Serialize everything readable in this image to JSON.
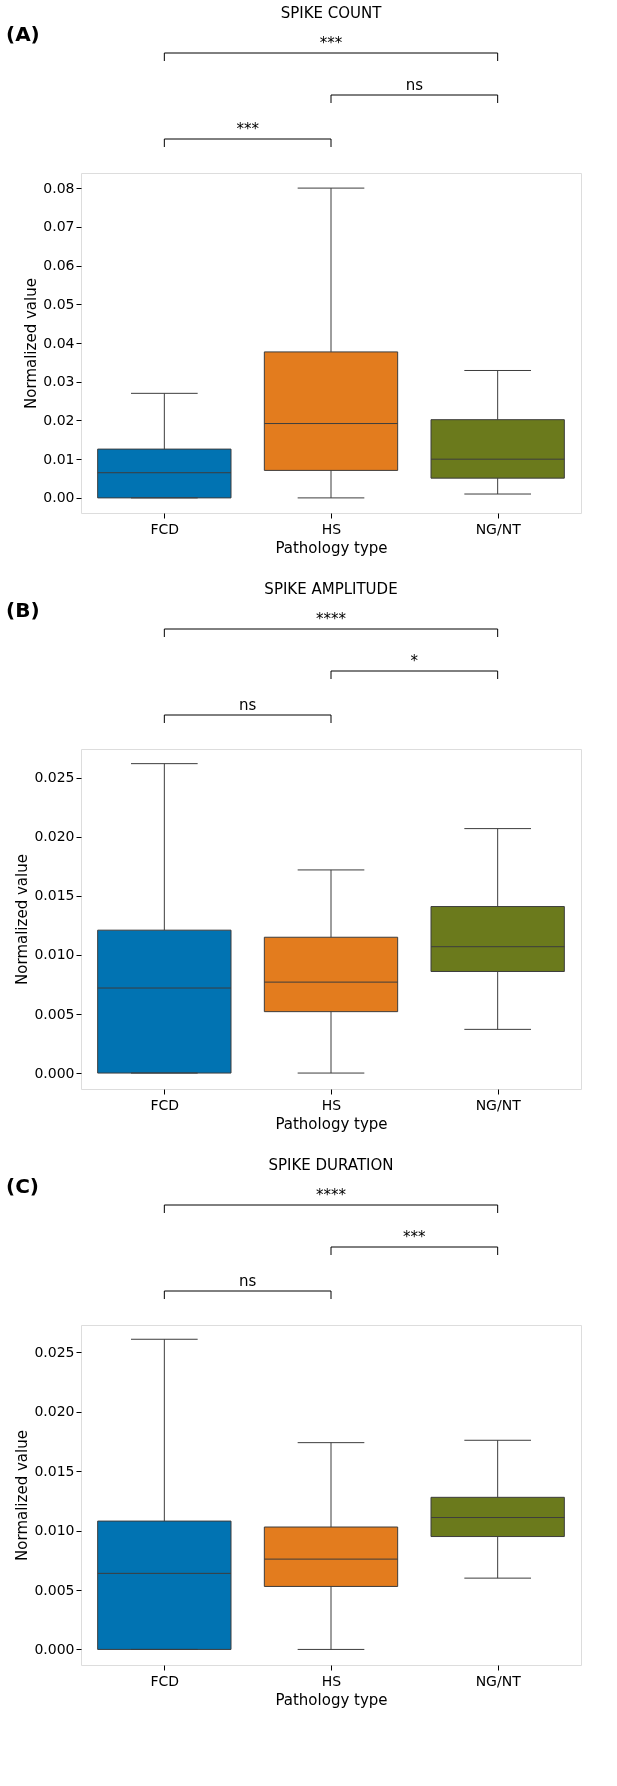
{
  "chart_data": [
    {
      "type": "box",
      "title": "SPIKE COUNT",
      "xlabel": "Pathology type",
      "ylabel": "Normalized value",
      "categories": [
        "FCD",
        "HS",
        "NG/NT"
      ],
      "colors": [
        "#0173b2",
        "#e37c1e",
        "#6b7a1c"
      ],
      "boxes": [
        {
          "low": 0.0,
          "q1": 0.0,
          "median": 0.0065,
          "q3": 0.0126,
          "high": 0.027
        },
        {
          "low": 0.0,
          "q1": 0.0071,
          "median": 0.0192,
          "q3": 0.0377,
          "high": 0.08
        },
        {
          "low": 0.001,
          "q1": 0.0051,
          "median": 0.01,
          "q3": 0.0202,
          "high": 0.0329
        }
      ],
      "ylim": [
        -0.0039,
        0.0839
      ],
      "yticks": [
        {
          "value": 0,
          "label": "0.00"
        },
        {
          "value": 0.01,
          "label": "0.01"
        },
        {
          "value": 0.02,
          "label": "0.02"
        },
        {
          "value": 0.03,
          "label": "0.03"
        },
        {
          "value": 0.04,
          "label": "0.04"
        },
        {
          "value": 0.05,
          "label": "0.05"
        },
        {
          "value": 0.06,
          "label": "0.06"
        },
        {
          "value": 0.07,
          "label": "0.07"
        },
        {
          "value": 0.08,
          "label": "0.08"
        }
      ],
      "grid": false,
      "annotations": [
        "(A)",
        "***",
        "ns",
        "***"
      ]
    },
    {
      "type": "box",
      "title": "SPIKE AMPLITUDE",
      "xlabel": "Pathology type",
      "ylabel": "Normalized value",
      "categories": [
        "FCD",
        "HS",
        "NG/NT"
      ],
      "colors": [
        "#0173b2",
        "#e37c1e",
        "#6b7a1c"
      ],
      "boxes": [
        {
          "low": 0.0,
          "q1": 0.0,
          "median": 0.0072,
          "q3": 0.0121,
          "high": 0.0262
        },
        {
          "low": 0.0,
          "q1": 0.0052,
          "median": 0.0077,
          "q3": 0.0115,
          "high": 0.0172
        },
        {
          "low": 0.0037,
          "q1": 0.0086,
          "median": 0.0107,
          "q3": 0.0141,
          "high": 0.0207
        }
      ],
      "ylim": [
        -0.00135,
        0.02744
      ],
      "yticks": [
        {
          "value": 0,
          "label": "0.000"
        },
        {
          "value": 0.005,
          "label": "0.005"
        },
        {
          "value": 0.01,
          "label": "0.010"
        },
        {
          "value": 0.015,
          "label": "0.015"
        },
        {
          "value": 0.02,
          "label": "0.020"
        },
        {
          "value": 0.025,
          "label": "0.025"
        }
      ],
      "grid": false,
      "annotations": [
        "(B)",
        "****",
        "*",
        "ns"
      ]
    },
    {
      "type": "box",
      "title": "SPIKE DURATION",
      "xlabel": "Pathology type",
      "ylabel": "Normalized value",
      "categories": [
        "FCD",
        "HS",
        "NG/NT"
      ],
      "colors": [
        "#0173b2",
        "#e37c1e",
        "#6b7a1c"
      ],
      "boxes": [
        {
          "low": 0.0,
          "q1": 0.0,
          "median": 0.0064,
          "q3": 0.0108,
          "high": 0.0261
        },
        {
          "low": 0.0,
          "q1": 0.0053,
          "median": 0.0076,
          "q3": 0.0103,
          "high": 0.0174
        },
        {
          "low": 0.006,
          "q1": 0.0095,
          "median": 0.0111,
          "q3": 0.0128,
          "high": 0.0176
        }
      ],
      "ylim": [
        -0.00131,
        0.0273
      ],
      "yticks": [
        {
          "value": 0,
          "label": "0.000"
        },
        {
          "value": 0.005,
          "label": "0.005"
        },
        {
          "value": 0.01,
          "label": "0.010"
        },
        {
          "value": 0.015,
          "label": "0.015"
        },
        {
          "value": 0.02,
          "label": "0.020"
        },
        {
          "value": 0.025,
          "label": "0.025"
        }
      ],
      "grid": false,
      "annotations": [
        "(C)",
        "****",
        "***",
        "ns"
      ]
    }
  ]
}
